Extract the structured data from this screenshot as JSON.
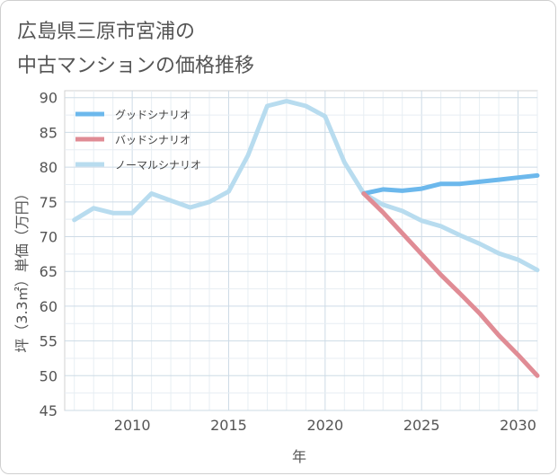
{
  "title_lines": [
    "広島県三原市宮浦の",
    "中古マンションの価格推移"
  ],
  "chart_data": {
    "type": "line",
    "title": "広島県三原市宮浦の中古マンションの価格推移",
    "xlabel": "年",
    "ylabel": "坪（3.3㎡）単価（万円）",
    "xlim": [
      2006.5,
      2031
    ],
    "ylim": [
      45,
      91
    ],
    "x_ticks": [
      2010,
      2015,
      2020,
      2025,
      2030
    ],
    "y_ticks": [
      45,
      50,
      55,
      60,
      65,
      70,
      75,
      80,
      85,
      90
    ],
    "grid": true,
    "legend_position": "top-left",
    "series": [
      {
        "name": "グッドシナリオ",
        "color": "#6cb8ec",
        "x": [
          2022,
          2023,
          2024,
          2025,
          2026,
          2027,
          2028,
          2029,
          2030,
          2031
        ],
        "y": [
          76.2,
          76.8,
          76.6,
          76.9,
          77.6,
          77.6,
          77.9,
          78.2,
          78.5,
          78.8
        ]
      },
      {
        "name": "バッドシナリオ",
        "color": "#e08c95",
        "x": [
          2022,
          2023,
          2024,
          2025,
          2026,
          2027,
          2028,
          2029,
          2030,
          2031
        ],
        "y": [
          76.2,
          73.5,
          70.5,
          67.5,
          64.5,
          61.8,
          59.0,
          55.8,
          53.0,
          50.0
        ]
      },
      {
        "name": "ノーマルシナリオ",
        "color": "#b8dcef",
        "x": [
          2007,
          2008,
          2009,
          2010,
          2011,
          2012,
          2013,
          2014,
          2015,
          2016,
          2017,
          2018,
          2019,
          2020,
          2021,
          2022,
          2023,
          2024,
          2025,
          2026,
          2027,
          2028,
          2029,
          2030,
          2031
        ],
        "y": [
          72.4,
          74.1,
          73.4,
          73.4,
          76.2,
          75.2,
          74.2,
          75.0,
          76.5,
          81.7,
          88.8,
          89.5,
          88.8,
          87.3,
          80.7,
          76.2,
          74.6,
          73.7,
          72.3,
          71.5,
          70.2,
          69.0,
          67.6,
          66.7,
          65.2
        ]
      }
    ]
  }
}
